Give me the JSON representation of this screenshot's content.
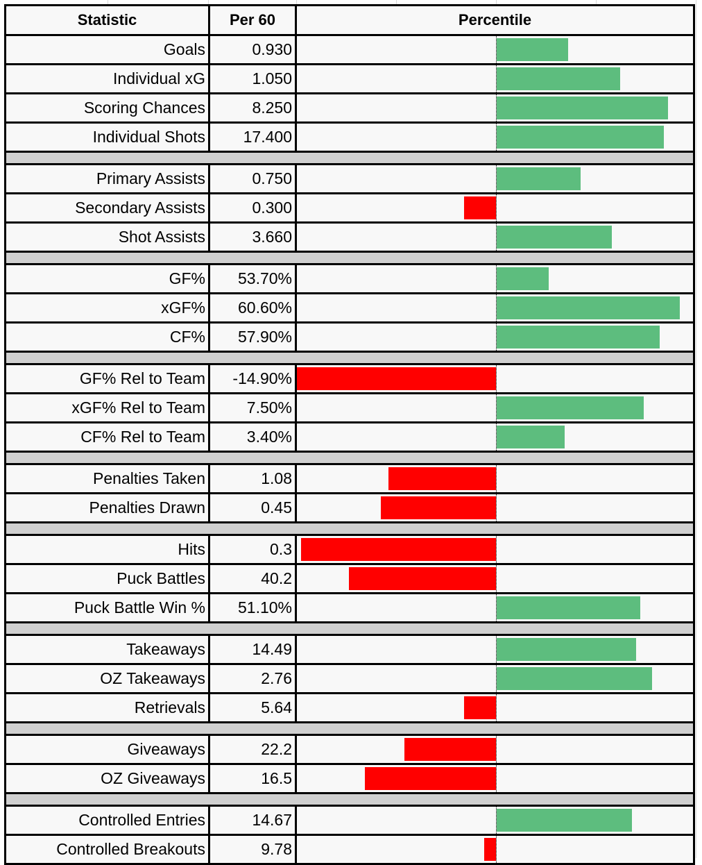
{
  "chart_data": {
    "type": "bar",
    "orientation": "horizontal",
    "table_headers": {
      "statistic": "Statistic",
      "per60": "Per 60",
      "percentile": "Percentile"
    },
    "bar_center_percentile": 50,
    "groups": [
      [
        {
          "stat": "Goals",
          "per60": "0.930",
          "percentile": 68
        },
        {
          "stat": "Individual xG",
          "per60": "1.050",
          "percentile": 81
        },
        {
          "stat": "Scoring Chances",
          "per60": "8.250",
          "percentile": 93
        },
        {
          "stat": "Individual Shots",
          "per60": "17.400",
          "percentile": 92
        }
      ],
      [
        {
          "stat": "Primary Assists",
          "per60": "0.750",
          "percentile": 71
        },
        {
          "stat": "Secondary Assists",
          "per60": "0.300",
          "percentile": 42
        },
        {
          "stat": "Shot Assists",
          "per60": "3.660",
          "percentile": 79
        }
      ],
      [
        {
          "stat": "GF%",
          "per60": "53.70%",
          "percentile": 63
        },
        {
          "stat": "xGF%",
          "per60": "60.60%",
          "percentile": 96
        },
        {
          "stat": "CF%",
          "per60": "57.90%",
          "percentile": 91
        }
      ],
      [
        {
          "stat": "GF% Rel to Team",
          "per60": "-14.90%",
          "percentile": 0
        },
        {
          "stat": "xGF% Rel to Team",
          "per60": "7.50%",
          "percentile": 87
        },
        {
          "stat": "CF% Rel to Team",
          "per60": "3.40%",
          "percentile": 67
        }
      ],
      [
        {
          "stat": "Penalties Taken",
          "per60": "1.08",
          "percentile": 23
        },
        {
          "stat": "Penalties Drawn",
          "per60": "0.45",
          "percentile": 21
        }
      ],
      [
        {
          "stat": "Hits",
          "per60": "0.3",
          "percentile": 1
        },
        {
          "stat": "Puck Battles",
          "per60": "40.2",
          "percentile": 13
        },
        {
          "stat": "Puck Battle Win %",
          "per60": "51.10%",
          "percentile": 86
        }
      ],
      [
        {
          "stat": "Takeaways",
          "per60": "14.49",
          "percentile": 85
        },
        {
          "stat": "OZ Takeaways",
          "per60": "2.76",
          "percentile": 89
        },
        {
          "stat": "Retrievals",
          "per60": "5.64",
          "percentile": 42
        }
      ],
      [
        {
          "stat": "Giveaways",
          "per60": "22.2",
          "percentile": 27
        },
        {
          "stat": "OZ Giveaways",
          "per60": "16.5",
          "percentile": 17
        }
      ],
      [
        {
          "stat": "Controlled Entries",
          "per60": "14.67",
          "percentile": 84
        },
        {
          "stat": "Controlled Breakouts",
          "per60": "9.78",
          "percentile": 47
        }
      ]
    ]
  },
  "colors": {
    "above_median": "#5dbd7e",
    "below_median": "#ff0000",
    "separator": "#d0d0d0"
  }
}
